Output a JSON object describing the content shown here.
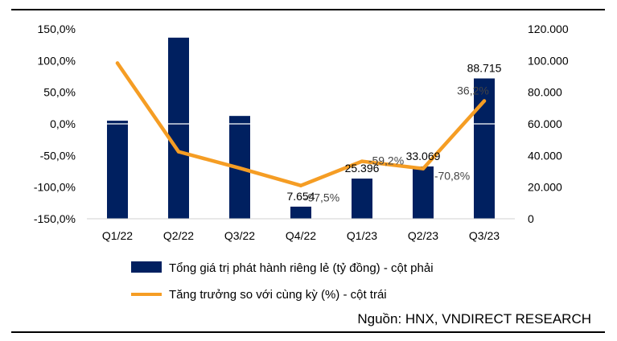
{
  "chart_data": {
    "type": "bar+line",
    "categories": [
      "Q1/22",
      "Q2/22",
      "Q3/22",
      "Q4/22",
      "Q1/23",
      "Q2/23",
      "Q3/23"
    ],
    "series": [
      {
        "name": "Tổng giá trị phát hành riêng lẻ (tỷ đồng) - cột phải",
        "type": "bar",
        "axis": "right",
        "color": "#002060",
        "values": [
          62000,
          114500,
          65000,
          7654,
          25396,
          33069,
          88715
        ]
      },
      {
        "name": "Tăng trưởng so với cùng kỳ (%) - cột trái",
        "type": "line",
        "axis": "left",
        "color": "#F59D24",
        "values": [
          96.0,
          -44.0,
          -70.0,
          -97.5,
          -59.2,
          -70.8,
          36.2
        ]
      }
    ],
    "bar_labels": [
      "",
      "",
      "",
      "7.654",
      "25.396",
      "33.069",
      "88.715"
    ],
    "line_labels": [
      "",
      "",
      "",
      "-97,5%",
      "-59,2%",
      "-70,8%",
      "36,2%"
    ],
    "left_axis": {
      "ticks": [
        "150,0%",
        "100,0%",
        "50,0%",
        "0,0%",
        "-50,0%",
        "-100,0%",
        "-150,0%"
      ],
      "range": [
        -150,
        150
      ]
    },
    "right_axis": {
      "ticks": [
        "120.000",
        "100.000",
        "80.000",
        "60.000",
        "40.000",
        "20.000",
        "0"
      ],
      "range": [
        0,
        120000
      ]
    },
    "legend_position": "bottom",
    "grid": false
  },
  "source": "Nguồn: HNX, VNDIRECT RESEARCH"
}
